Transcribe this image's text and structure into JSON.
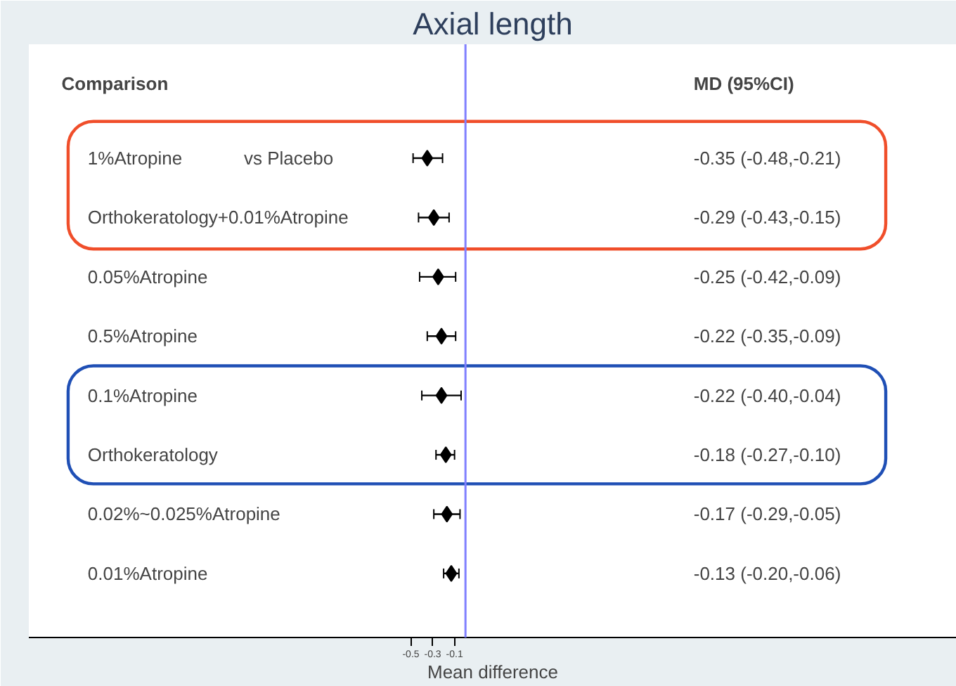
{
  "chart_data": {
    "type": "scatter",
    "orientation": "horizontal",
    "title": "Axial length",
    "xlabel": "Mean difference",
    "categories": [
      "1%Atropine",
      "Orthokeratology+0.01%Atropine",
      "0.05%Atropine",
      "0.5%Atropine",
      "0.1%Atropine",
      "Orthokeratology",
      "0.02%~0.025%Atropine",
      "0.01%Atropine"
    ],
    "values": [
      -0.35,
      -0.29,
      -0.25,
      -0.22,
      -0.22,
      -0.18,
      -0.17,
      -0.13
    ],
    "errors": [
      [
        -0.48,
        -0.21
      ],
      [
        -0.43,
        -0.15
      ],
      [
        -0.42,
        -0.09
      ],
      [
        -0.35,
        -0.09
      ],
      [
        -0.4,
        -0.04
      ],
      [
        -0.27,
        -0.1
      ],
      [
        -0.29,
        -0.05
      ],
      [
        -0.2,
        -0.06
      ]
    ],
    "color": "#000000",
    "marker": "diamond",
    "grid": false,
    "tick_labels": "x",
    "xlim": [
      -4.0,
      4.5
    ],
    "xticks": [
      -0.5,
      -0.3,
      -0.1
    ],
    "ref_lines": [
      {
        "axis": "x",
        "value": 0,
        "color": "#8080ff"
      }
    ],
    "annotations": [
      "vs Placebo",
      "Comparison",
      "MD (95%CI)",
      "-0.35 (-0.48,-0.21)",
      "-0.29 (-0.43,-0.15)",
      "-0.25 (-0.42,-0.09)",
      "-0.22 (-0.35,-0.09)",
      "-0.22 (-0.40,-0.04)",
      "-0.18 (-0.27,-0.10)",
      "-0.17 (-0.29,-0.05)",
      "-0.13 (-0.20,-0.06)"
    ]
  }
}
